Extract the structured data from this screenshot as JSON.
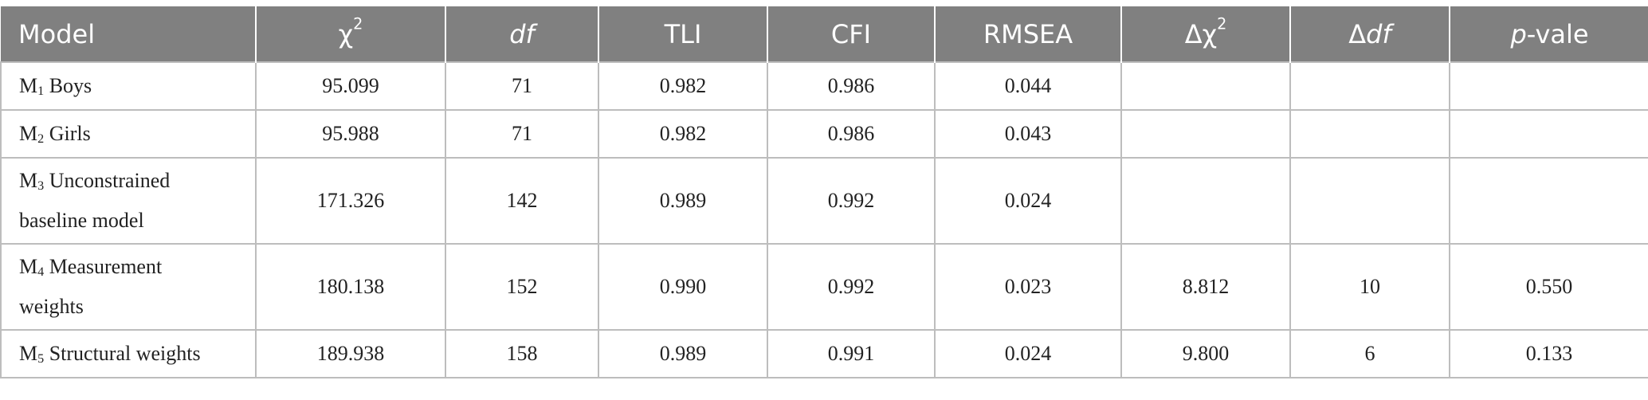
{
  "header": {
    "model": "Model",
    "chi_symbol": "χ",
    "chi_power": "2",
    "df": "df",
    "tli": "TLI",
    "cfi": "CFI",
    "rmsea": "RMSEA",
    "delta_symbol": "Δ",
    "dchi_symbol": "χ",
    "dchi_power": "2",
    "ddf_delta": "Δ",
    "ddf_df": "df",
    "p_italic": "p",
    "p_rest": "-vale"
  },
  "rows": [
    {
      "m": "M",
      "sub": "1",
      "name": "Boys",
      "chi2": "95.099",
      "df": "71",
      "tli": "0.982",
      "cfi": "0.986",
      "rmsea": "0.044",
      "dchi2": "",
      "ddf": "",
      "p": ""
    },
    {
      "m": "M",
      "sub": "2",
      "name": "Girls",
      "chi2": "95.988",
      "df": "71",
      "tli": "0.982",
      "cfi": "0.986",
      "rmsea": "0.043",
      "dchi2": "",
      "ddf": "",
      "p": ""
    },
    {
      "m": "M",
      "sub": "3",
      "name": "Unconstrained",
      "name2": "baseline model",
      "chi2": "171.326",
      "df": "142",
      "tli": "0.989",
      "cfi": "0.992",
      "rmsea": "0.024",
      "dchi2": "",
      "ddf": "",
      "p": ""
    },
    {
      "m": "M",
      "sub": "4",
      "name": "Measurement",
      "name2": "weights",
      "chi2": "180.138",
      "df": "152",
      "tli": "0.990",
      "cfi": "0.992",
      "rmsea": "0.023",
      "dchi2": "8.812",
      "ddf": "10",
      "p": "0.550"
    },
    {
      "m": "M",
      "sub": "5",
      "name": "Structural weights",
      "chi2": "189.938",
      "df": "158",
      "tli": "0.989",
      "cfi": "0.991",
      "rmsea": "0.024",
      "dchi2": "9.800",
      "ddf": "6",
      "p": "0.133"
    }
  ]
}
